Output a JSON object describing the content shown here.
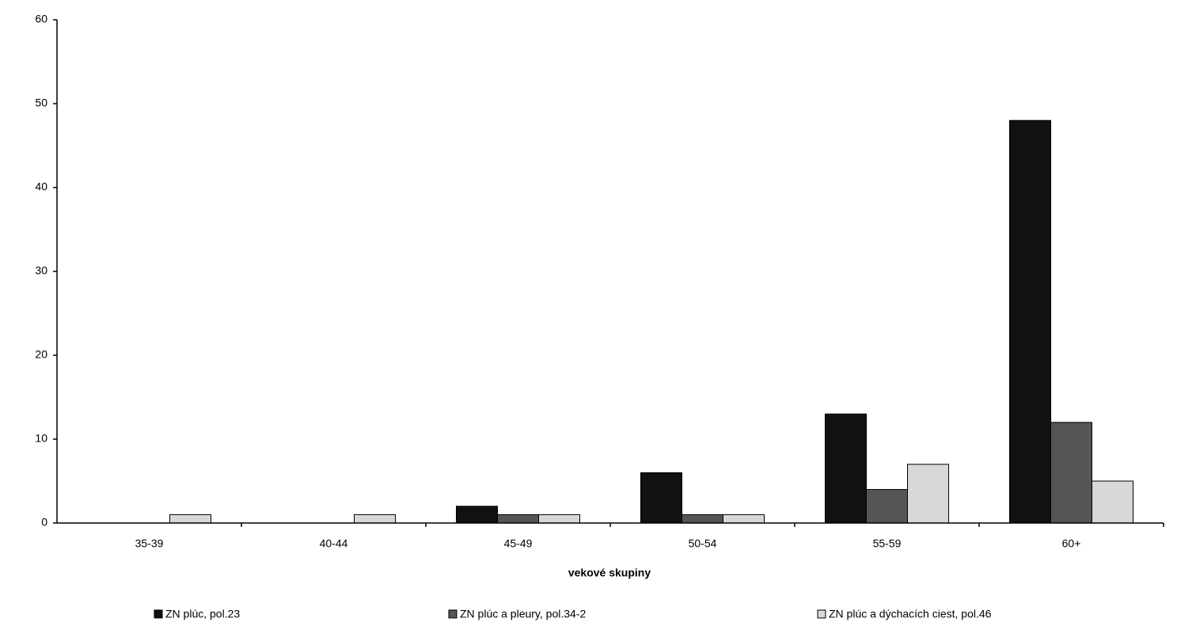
{
  "chart_data": {
    "type": "bar",
    "categories": [
      "35-39",
      "40-44",
      "45-49",
      "50-54",
      "55-59",
      "60+"
    ],
    "series": [
      {
        "name": "ZN plúc, pol.23",
        "color": "#111111",
        "values": [
          0,
          0,
          2,
          6,
          13,
          48
        ]
      },
      {
        "name": "ZN plúc a pleury, pol.34-2",
        "color": "#555555",
        "values": [
          0,
          0,
          1,
          1,
          4,
          12
        ]
      },
      {
        "name": "ZN plúc a dýchacích ciest, pol.46",
        "color": "#d8d8d8",
        "values": [
          1,
          1,
          1,
          1,
          7,
          5
        ]
      }
    ],
    "x_label": "vekové skupiny",
    "ylim": [
      0,
      60
    ],
    "yticks": [
      0,
      10,
      20,
      30,
      40,
      50,
      60
    ],
    "grid": false,
    "legend": "bottom"
  }
}
